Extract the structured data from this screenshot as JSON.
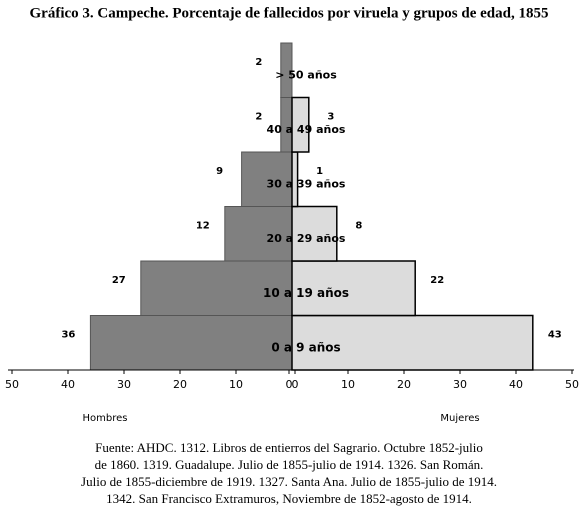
{
  "chart_data": {
    "type": "pyramid",
    "title": "Gráfico 3. Campeche. Porcentaje de fallecidos por viruela y grupos de edad, 1855",
    "categories": [
      "0 a 9 años",
      "10 a 19 años",
      "20 a 29 años",
      "30 a 39 años",
      "40 a 49 años",
      "> 50 años"
    ],
    "series": [
      {
        "name": "Hombres",
        "color": "#808080",
        "side": "left",
        "values": [
          36,
          27,
          12,
          9,
          2,
          2
        ]
      },
      {
        "name": "Mujeres",
        "color": "#dcdcdc",
        "side": "right",
        "values": [
          43,
          22,
          8,
          1,
          3,
          null
        ]
      }
    ],
    "xlim": [
      -50,
      50
    ],
    "xticks": [
      {
        "value": -50,
        "label": "50"
      },
      {
        "value": -40,
        "label": "40"
      },
      {
        "value": -30,
        "label": "30"
      },
      {
        "value": -20,
        "label": "20"
      },
      {
        "value": -10,
        "label": "10"
      },
      0,
      0,
      10,
      20,
      30,
      40,
      50
    ],
    "source": [
      "Fuente: AHDC. 1312. Libros de entierros del Sagrario. Octubre 1852-julio",
      "de 1860. 1319. Guadalupe. Julio de 1855-julio de 1914. 1326. San Román.",
      "Julio de 1855-diciembre de 1919. 1327. Santa Ana. Julio de 1855-julio de 1914.",
      "1342. San Francisco Extramuros, Noviembre de 1852-agosto de 1914."
    ]
  }
}
